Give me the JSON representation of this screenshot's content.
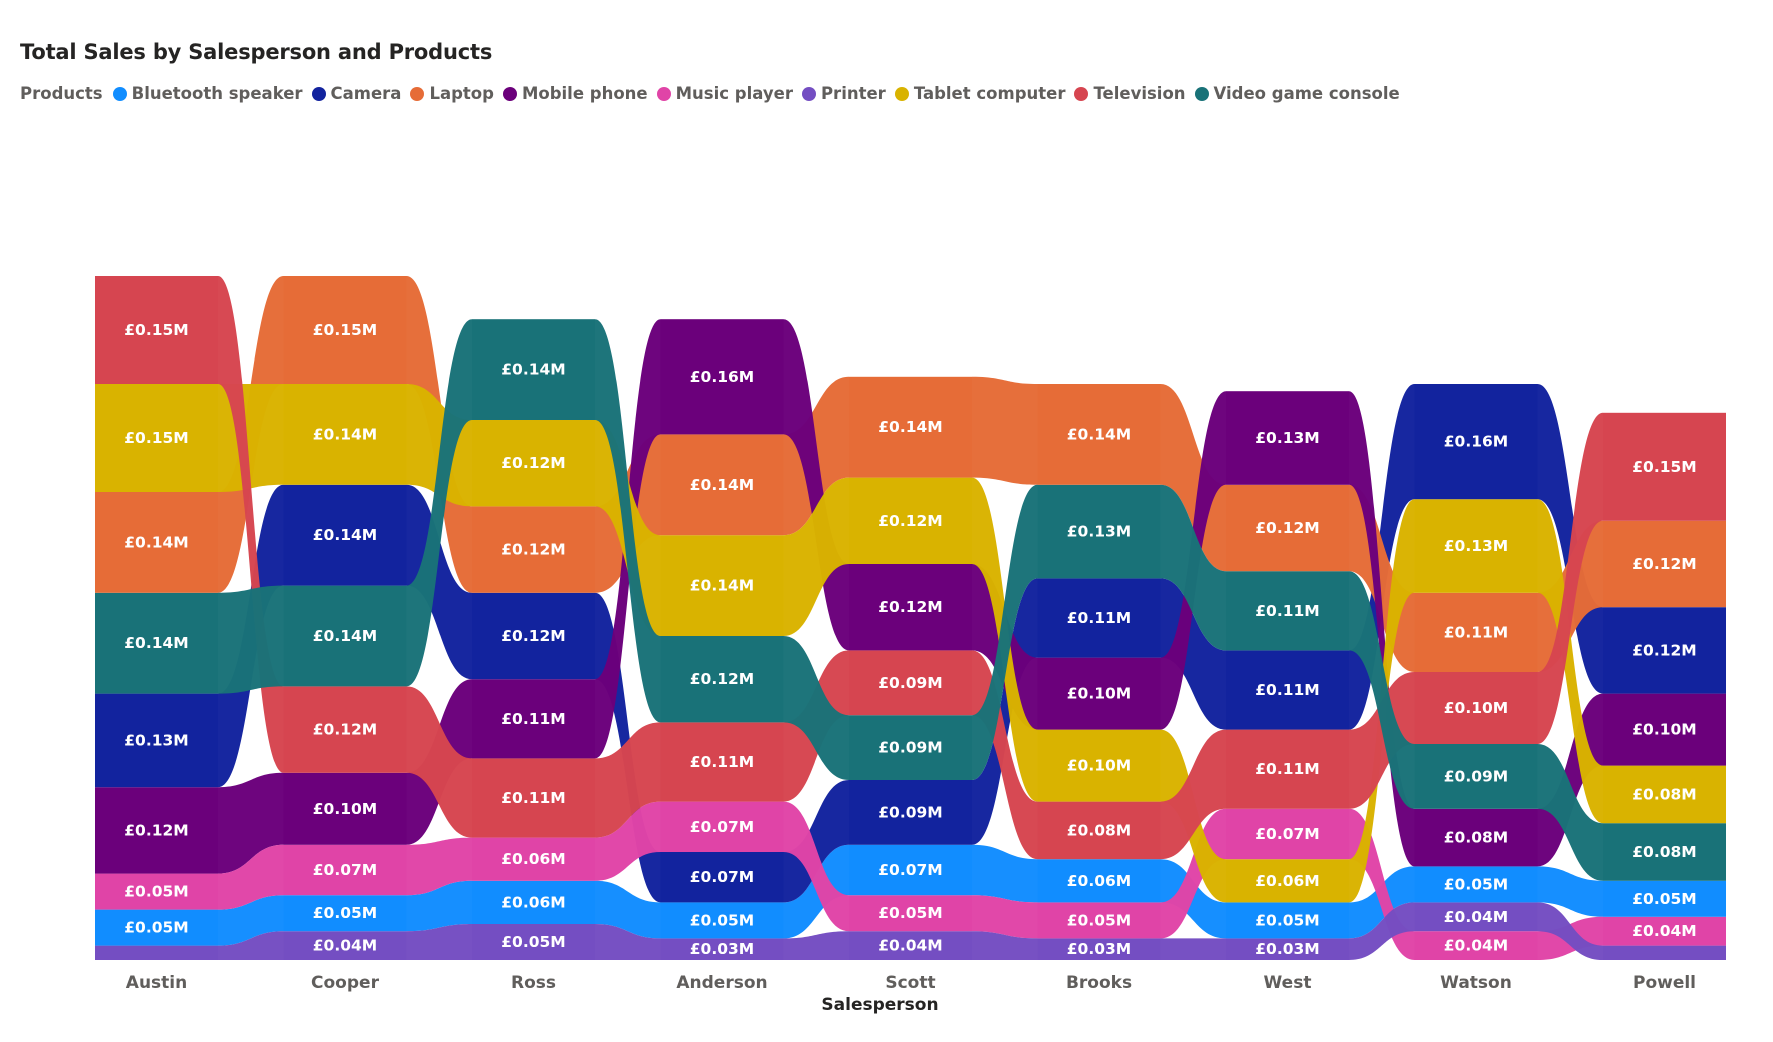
{
  "chart_data": {
    "type": "ribbon",
    "title": "Total Sales by Salesperson and Products",
    "legend_title": "Products",
    "legend_position": "top-left",
    "xlabel": "Salesperson",
    "ylabel": "",
    "grid": false,
    "categories": [
      "Austin",
      "Cooper",
      "Ross",
      "Anderson",
      "Scott",
      "Brooks",
      "West",
      "Watson",
      "Powell"
    ],
    "series": [
      {
        "name": "Bluetooth speaker",
        "color": "#118DFF",
        "values": [
          0.05,
          0.05,
          0.06,
          0.05,
          0.07,
          0.06,
          0.05,
          0.05,
          0.05
        ]
      },
      {
        "name": "Camera",
        "color": "#12239E",
        "values": [
          0.13,
          0.14,
          0.12,
          0.07,
          0.09,
          0.11,
          0.11,
          0.16,
          0.12
        ]
      },
      {
        "name": "Laptop",
        "color": "#E66C37",
        "values": [
          0.14,
          0.15,
          0.12,
          0.14,
          0.14,
          0.14,
          0.12,
          0.11,
          0.12
        ]
      },
      {
        "name": "Mobile phone",
        "color": "#6B007B",
        "values": [
          0.12,
          0.1,
          0.11,
          0.16,
          0.12,
          0.1,
          0.13,
          0.08,
          0.1
        ]
      },
      {
        "name": "Music player",
        "color": "#E044A7",
        "values": [
          0.05,
          0.07,
          0.06,
          0.07,
          0.05,
          0.05,
          0.07,
          0.04,
          0.04
        ]
      },
      {
        "name": "Printer",
        "color": "#744EC2",
        "values": [
          0.02,
          0.04,
          0.05,
          0.03,
          0.04,
          0.03,
          0.03,
          0.04,
          0.02
        ]
      },
      {
        "name": "Tablet computer",
        "color": "#D9B300",
        "values": [
          0.15,
          0.14,
          0.12,
          0.14,
          0.12,
          0.1,
          0.06,
          0.13,
          0.08
        ]
      },
      {
        "name": "Television",
        "color": "#D64550",
        "values": [
          0.15,
          0.12,
          0.11,
          0.11,
          0.09,
          0.08,
          0.11,
          0.1,
          0.15
        ]
      },
      {
        "name": "Video game console",
        "color": "#197278",
        "values": [
          0.14,
          0.14,
          0.14,
          0.12,
          0.09,
          0.13,
          0.11,
          0.09,
          0.08
        ]
      }
    ],
    "stack_order_bottom_to_top": [
      [
        "Printer",
        "Bluetooth speaker",
        "Music player",
        "Mobile phone",
        "Camera",
        "Video game console",
        "Laptop",
        "Tablet computer",
        "Television"
      ],
      [
        "Printer",
        "Bluetooth speaker",
        "Music player",
        "Mobile phone",
        "Television",
        "Video game console",
        "Camera",
        "Tablet computer",
        "Laptop"
      ],
      [
        "Printer",
        "Bluetooth speaker",
        "Music player",
        "Television",
        "Mobile phone",
        "Camera",
        "Laptop",
        "Tablet computer",
        "Video game console"
      ],
      [
        "Printer",
        "Bluetooth speaker",
        "Camera",
        "Music player",
        "Television",
        "Video game console",
        "Tablet computer",
        "Laptop",
        "Mobile phone"
      ],
      [
        "Printer",
        "Music player",
        "Bluetooth speaker",
        "Camera",
        "Video game console",
        "Television",
        "Mobile phone",
        "Tablet computer",
        "Laptop"
      ],
      [
        "Printer",
        "Music player",
        "Bluetooth speaker",
        "Television",
        "Tablet computer",
        "Mobile phone",
        "Camera",
        "Video game console",
        "Laptop"
      ],
      [
        "Printer",
        "Bluetooth speaker",
        "Tablet computer",
        "Music player",
        "Television",
        "Camera",
        "Video game console",
        "Laptop",
        "Mobile phone"
      ],
      [
        "Music player",
        "Printer",
        "Bluetooth speaker",
        "Mobile phone",
        "Video game console",
        "Television",
        "Laptop",
        "Tablet computer",
        "Camera"
      ],
      [
        "Printer",
        "Music player",
        "Bluetooth speaker",
        "Video game console",
        "Tablet computer",
        "Mobile phone",
        "Camera",
        "Laptop",
        "Television"
      ]
    ],
    "data_labels": [
      [
        "",
        "£0.05M",
        "£0.05M",
        "£0.12M",
        "£0.13M",
        "£0.14M",
        "£0.14M",
        "£0.15M",
        "£0.15M"
      ],
      [
        "£0.04M",
        "£0.05M",
        "£0.07M",
        "£0.10M",
        "£0.12M",
        "£0.14M",
        "£0.14M",
        "£0.14M",
        "£0.15M"
      ],
      [
        "£0.05M",
        "£0.06M",
        "£0.06M",
        "£0.11M",
        "£0.11M",
        "£0.12M",
        "£0.12M",
        "£0.12M",
        "£0.14M"
      ],
      [
        "£0.03M",
        "£0.05M",
        "£0.07M",
        "£0.07M",
        "£0.11M",
        "£0.12M",
        "£0.14M",
        "£0.14M",
        "£0.16M"
      ],
      [
        "£0.04M",
        "£0.05M",
        "£0.07M",
        "£0.09M",
        "£0.09M",
        "£0.09M",
        "£0.12M",
        "£0.12M",
        "£0.14M"
      ],
      [
        "£0.03M",
        "£0.05M",
        "£0.06M",
        "£0.08M",
        "£0.10M",
        "£0.10M",
        "£0.11M",
        "£0.13M",
        "£0.14M"
      ],
      [
        "£0.03M",
        "£0.05M",
        "£0.06M",
        "£0.07M",
        "£0.11M",
        "£0.11M",
        "£0.11M",
        "£0.12M",
        "£0.13M"
      ],
      [
        "£0.04M",
        "£0.04M",
        "£0.05M",
        "£0.08M",
        "£0.09M",
        "£0.10M",
        "£0.11M",
        "£0.13M",
        "£0.16M"
      ],
      [
        "",
        "£0.04M",
        "£0.05M",
        "£0.08M",
        "£0.08M",
        "£0.10M",
        "£0.12M",
        "£0.12M",
        "£0.15M"
      ]
    ]
  }
}
